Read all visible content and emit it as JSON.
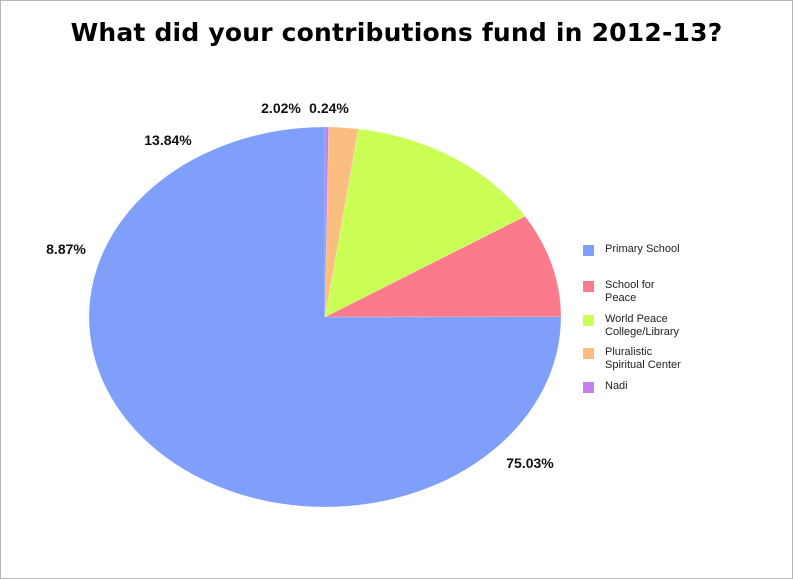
{
  "title": "What did your contributions fund in 2012-13?",
  "colors": {
    "primary_school": "#7f9ffa",
    "school_for_peace": "#fb7a8b",
    "world_peace": "#ccff55",
    "pluralistic": "#fbbd80",
    "nadi": "#c47ef0"
  },
  "chart_data": {
    "type": "pie",
    "title": "What did your contributions fund in 2012-13?",
    "categories": [
      "Primary School",
      "School for Peace",
      "World Peace College/Library",
      "Pluralistic Spiritual Center",
      "Nadi"
    ],
    "values": [
      75.03,
      8.87,
      13.84,
      2.02,
      0.24
    ],
    "labels": [
      "75.03%",
      "8.87%",
      "13.84%",
      "2.02%",
      "0.24%"
    ],
    "legend": {
      "placement": "right",
      "entries": [
        {
          "lines": [
            "Primary School"
          ],
          "color": "#7f9ffa"
        },
        {
          "lines": [
            "School for",
            "Peace"
          ],
          "color": "#fb7a8b"
        },
        {
          "lines": [
            "World Peace",
            "College/Library"
          ],
          "color": "#ccff55"
        },
        {
          "lines": [
            "Pluralistic",
            "Spiritual Center"
          ],
          "color": "#fbbd80"
        },
        {
          "lines": [
            "Nadi"
          ],
          "color": "#c47ef0"
        }
      ]
    },
    "style": "3d"
  }
}
